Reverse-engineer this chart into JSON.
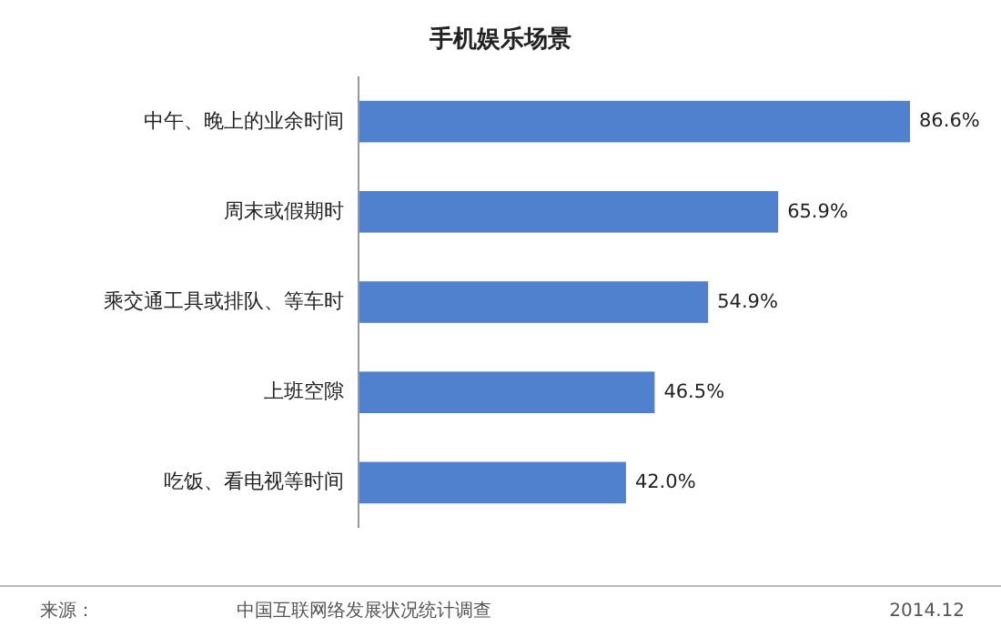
{
  "chart_data": {
    "type": "bar",
    "orientation": "horizontal",
    "title": "手机娱乐场景",
    "categories": [
      "中午、晚上的业余时间",
      "周末或假期时",
      "乘交通工具或排队、等车时",
      "上班空隙",
      "吃饭、看电视等时间"
    ],
    "values": [
      86.6,
      65.9,
      54.9,
      46.5,
      42.0
    ],
    "value_labels": [
      "86.6%",
      "65.9%",
      "54.9%",
      "46.5%",
      "42.0%"
    ],
    "color": "#4f81cf",
    "annotations": [
      "来源：",
      "中国互联网络发展状况统计调查",
      "2014.12"
    ]
  }
}
